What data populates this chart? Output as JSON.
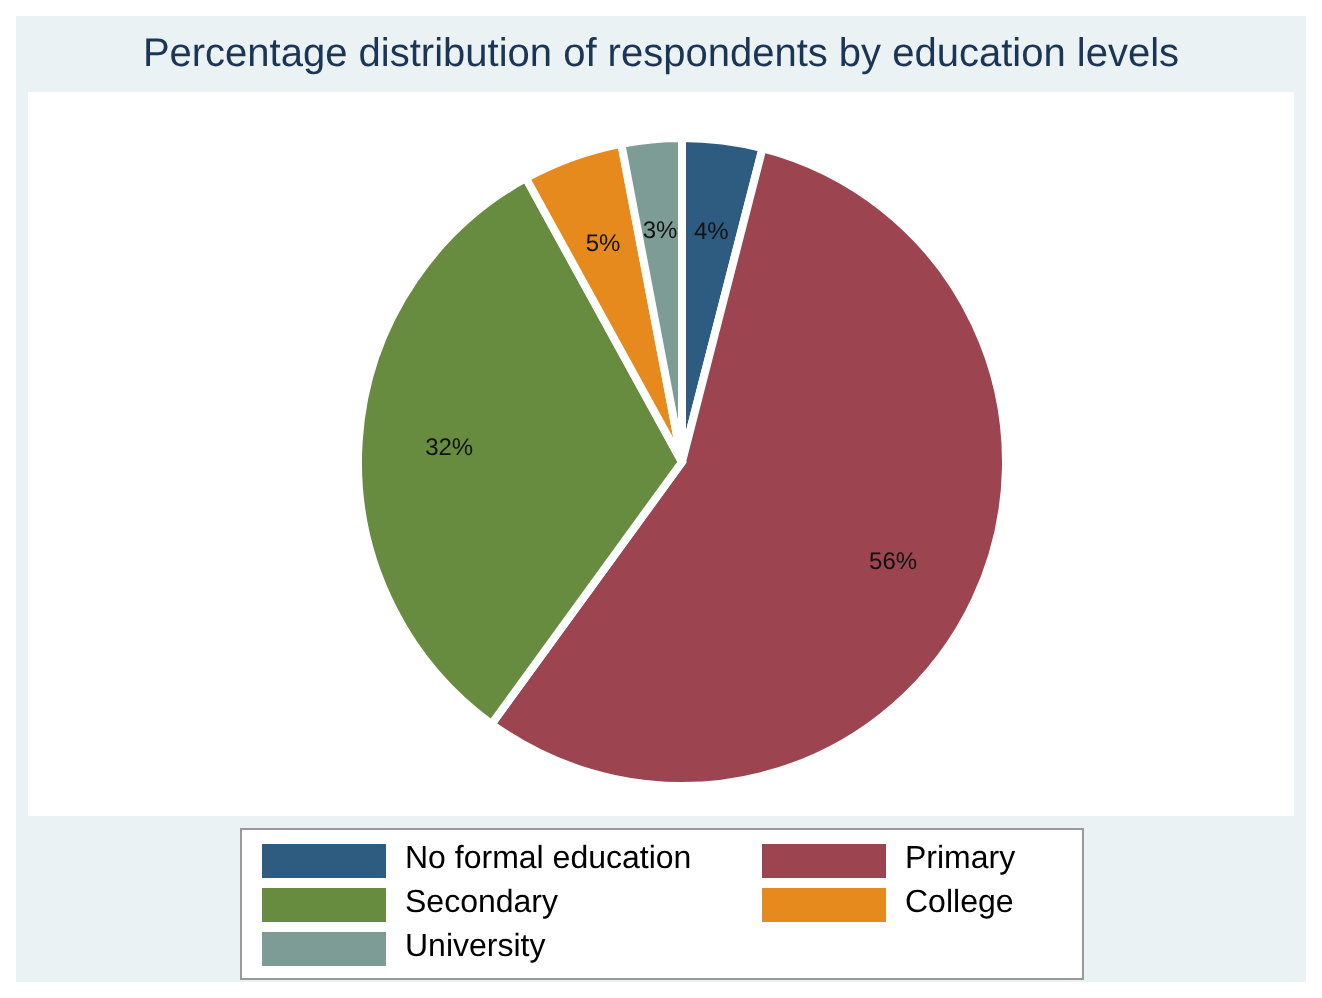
{
  "chart_data": {
    "type": "pie",
    "title": "Percentage distribution of respondents by education levels",
    "categories": [
      "No formal education",
      "Primary",
      "Secondary",
      "College",
      "University"
    ],
    "values": [
      4,
      56,
      32,
      5,
      3
    ],
    "colors": [
      "#2e5b80",
      "#9c4450",
      "#678b3f",
      "#e68a1e",
      "#7d9c95"
    ],
    "value_labels": [
      "4%",
      "56%",
      "32%",
      "5%",
      "3%"
    ],
    "legend": "bottom"
  }
}
